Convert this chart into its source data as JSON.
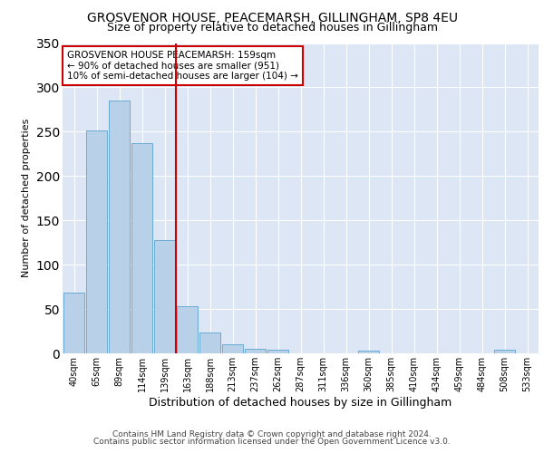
{
  "title1": "GROSVENOR HOUSE, PEACEMARSH, GILLINGHAM, SP8 4EU",
  "title2": "Size of property relative to detached houses in Gillingham",
  "xlabel": "Distribution of detached houses by size in Gillingham",
  "ylabel": "Number of detached properties",
  "footer1": "Contains HM Land Registry data © Crown copyright and database right 2024.",
  "footer2": "Contains public sector information licensed under the Open Government Licence v3.0.",
  "categories": [
    "40sqm",
    "65sqm",
    "89sqm",
    "114sqm",
    "139sqm",
    "163sqm",
    "188sqm",
    "213sqm",
    "237sqm",
    "262sqm",
    "287sqm",
    "311sqm",
    "336sqm",
    "360sqm",
    "385sqm",
    "410sqm",
    "434sqm",
    "459sqm",
    "484sqm",
    "508sqm",
    "533sqm"
  ],
  "values": [
    68,
    251,
    285,
    237,
    128,
    53,
    24,
    10,
    5,
    4,
    0,
    0,
    0,
    3,
    0,
    0,
    0,
    0,
    0,
    4,
    0
  ],
  "bar_color": "#b8d0e8",
  "bar_edgecolor": "#6aaad4",
  "vline_x": 4.5,
  "vline_color": "#cc0000",
  "annotation_text": "GROSVENOR HOUSE PEACEMARSH: 159sqm\n← 90% of detached houses are smaller (951)\n10% of semi-detached houses are larger (104) →",
  "annotation_box_color": "#ffffff",
  "annotation_box_edgecolor": "#cc0000",
  "ylim": [
    0,
    350
  ],
  "yticks": [
    0,
    50,
    100,
    150,
    200,
    250,
    300,
    350
  ],
  "plot_bg_color": "#dce6f5",
  "title1_fontsize": 10,
  "title2_fontsize": 9,
  "xlabel_fontsize": 9,
  "ylabel_fontsize": 8,
  "footer_fontsize": 6.5,
  "annot_fontsize": 7.5
}
